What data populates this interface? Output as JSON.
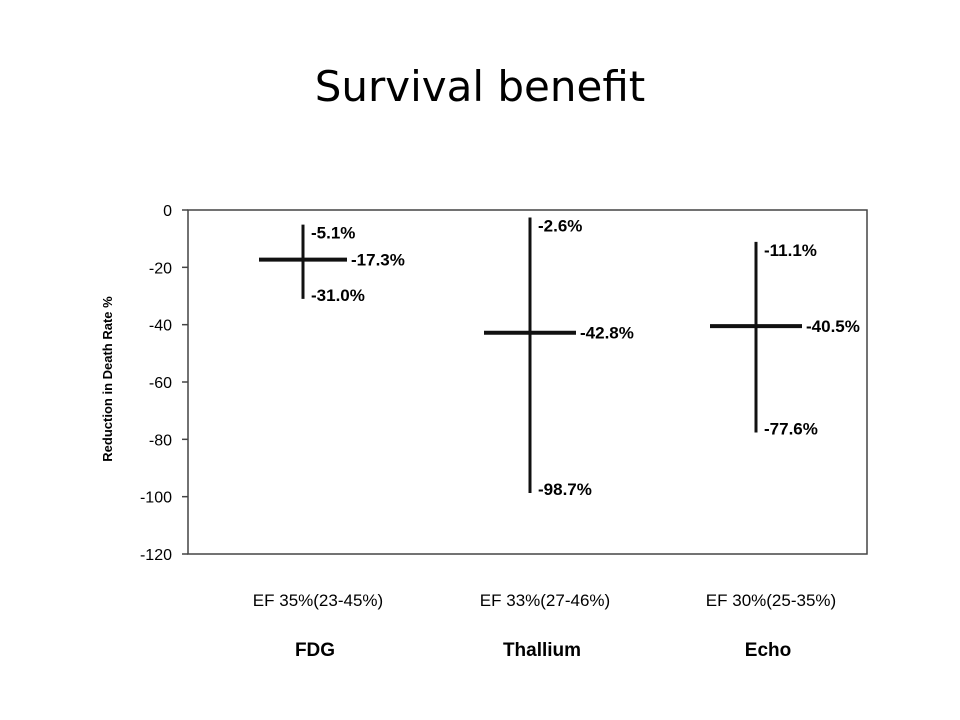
{
  "slide": {
    "title": "Survival benefit"
  },
  "chart_data": {
    "type": "scatter",
    "title": "",
    "xlabel": "",
    "ylabel": "Reduction in Death Rate %",
    "ylim": [
      -120,
      0
    ],
    "yticks": [
      0,
      -20,
      -40,
      -60,
      -80,
      -100,
      -120
    ],
    "ytick_labels": [
      "0",
      "-20",
      "-40",
      "-60",
      "-80",
      "-100",
      "-120"
    ],
    "grid": false,
    "categories": [
      "FDG",
      "Thallium",
      "Echo"
    ],
    "subtitles": [
      "EF 35%(23-45%)",
      "EF 33%(27-46%)",
      "EF 30%(25-35%)"
    ],
    "series": [
      {
        "values": [
          -17.3,
          -42.8,
          -40.5
        ],
        "upper": [
          -5.1,
          -2.6,
          -11.1
        ],
        "lower": [
          -31.0,
          -98.7,
          -77.6
        ],
        "labels": [
          "-17.3%",
          "-42.8%",
          "-40.5%"
        ],
        "upper_labels": [
          "-5.1%",
          "-2.6%",
          "-11.1%"
        ],
        "lower_labels": [
          "-31.0%",
          "-98.7%",
          "-77.6%"
        ]
      }
    ]
  }
}
